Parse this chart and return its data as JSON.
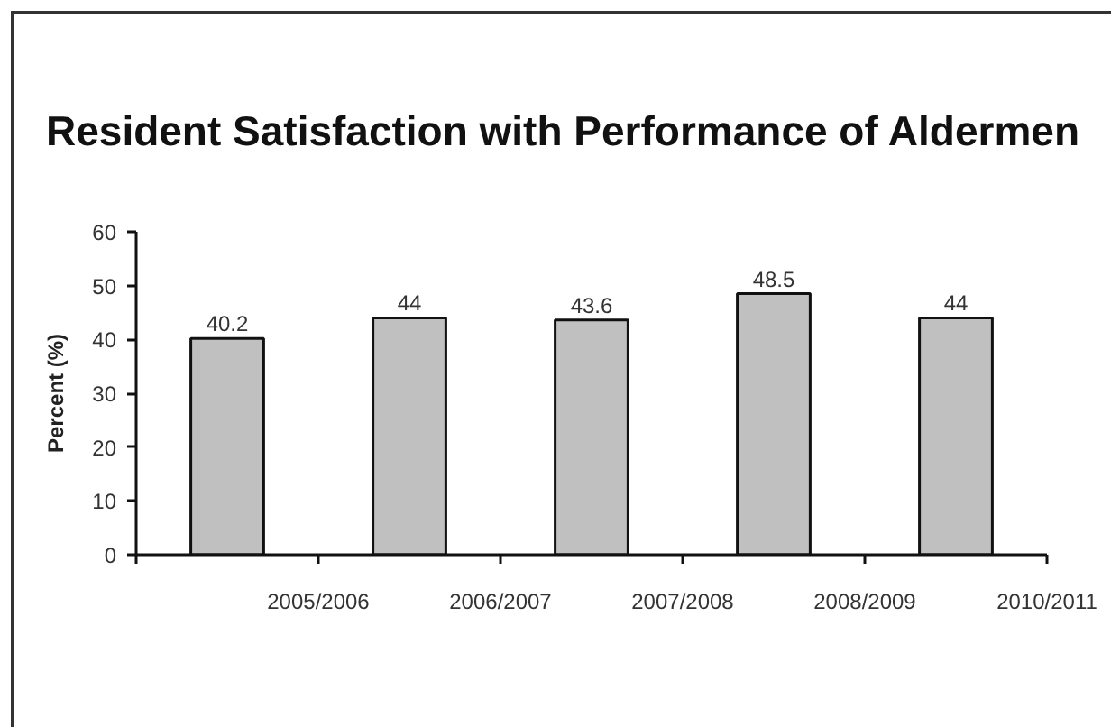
{
  "chart_data": {
    "type": "bar",
    "title": "Resident Satisfaction with Performance of Aldermen",
    "ylabel": "Percent (%)",
    "categories": [
      "2005/2006",
      "2006/2007",
      "2007/2008",
      "2008/2009",
      "2010/2011"
    ],
    "values": [
      40.2,
      44,
      43.6,
      48.5,
      44
    ],
    "color": "#c0c0c0",
    "ylim": [
      0,
      60
    ],
    "yticks": [
      0,
      10,
      20,
      30,
      40,
      50,
      60
    ],
    "data_labels": true
  }
}
